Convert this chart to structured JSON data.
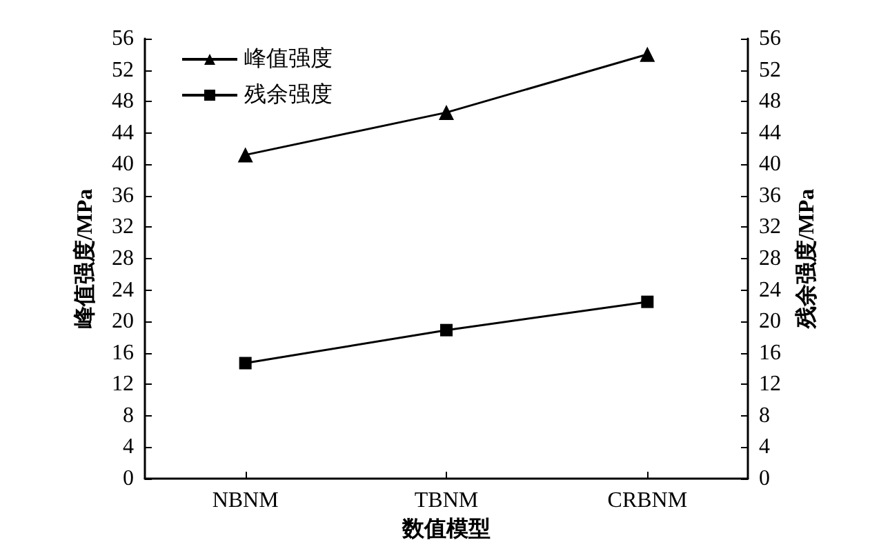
{
  "chart_data": {
    "type": "line",
    "xlabel": "数值模型",
    "ylabel": "峰值强度/MPa",
    "y2label": "残余强度/MPa",
    "categories": [
      "NBNM",
      "TBNM",
      "CRBNM"
    ],
    "series": [
      {
        "name": "峰值强度",
        "color": "#000000",
        "marker": "triangle",
        "values": [
          41.2,
          46.6,
          54
        ]
      },
      {
        "name": "残余强度",
        "color": "#000000",
        "marker": "square",
        "values": [
          14.7,
          18.9,
          22.5
        ]
      }
    ],
    "ylim": [
      0,
      56
    ],
    "yticks": [
      0,
      4,
      8,
      12,
      16,
      20,
      24,
      28,
      32,
      36,
      40,
      44,
      48,
      52,
      56
    ],
    "y2lim": [
      0,
      56
    ],
    "y2ticks": [
      0,
      4,
      8,
      12,
      16,
      20,
      24,
      28,
      32,
      36,
      40,
      44,
      48,
      52,
      56
    ],
    "grid": false,
    "legend": "top left",
    "line_style": "solid"
  }
}
